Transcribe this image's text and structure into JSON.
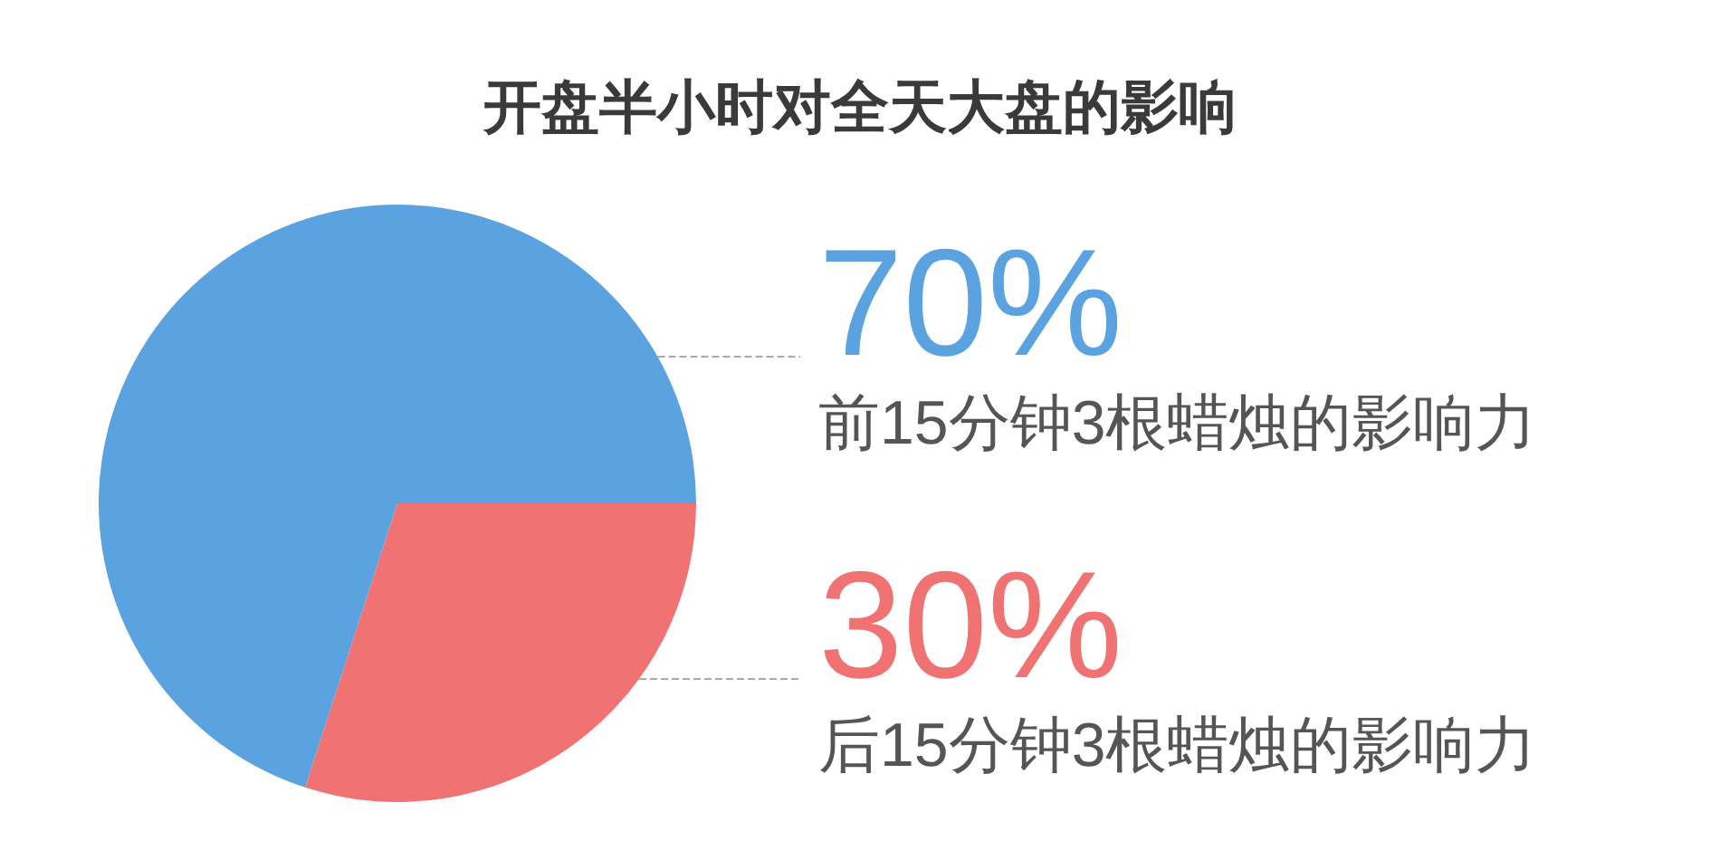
{
  "chart_data": {
    "type": "pie",
    "title": "开盘半小时对全天大盘的影响",
    "categories": [
      "前15分钟3根蜡烛的影响力",
      "后15分钟3根蜡烛的影响力"
    ],
    "values": [
      70,
      30
    ],
    "colors": [
      "#5ba3e0",
      "#f07272"
    ],
    "value_labels": [
      "70%",
      "30%"
    ]
  }
}
